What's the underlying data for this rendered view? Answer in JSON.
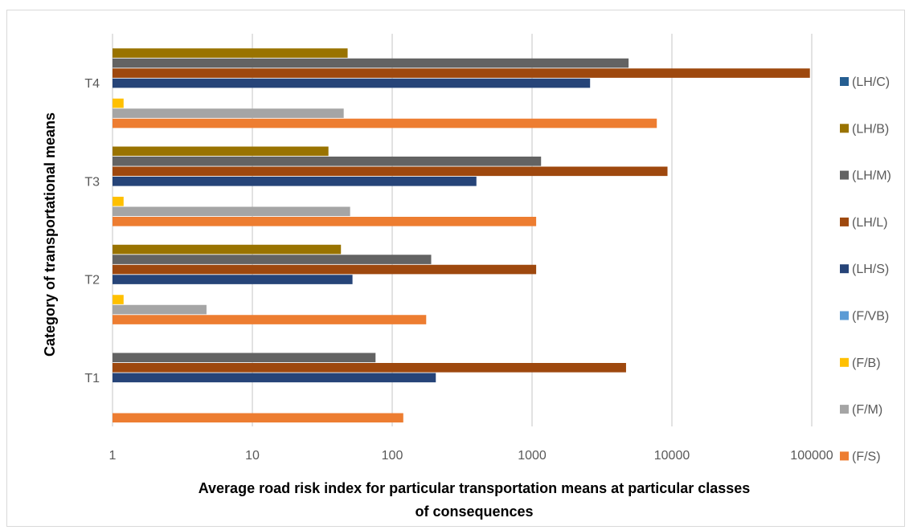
{
  "chart_data": {
    "type": "bar",
    "orientation": "horizontal",
    "x_scale": "log",
    "xlim": [
      1,
      100000
    ],
    "x_ticks": [
      "1",
      "10",
      "100",
      "1000",
      "10000",
      "100000"
    ],
    "categories": [
      "T1",
      "T2",
      "T3",
      "T4"
    ],
    "xlabel_line1": "Average road risk index for particular transportation means at particular classes",
    "xlabel_line2": "of consequences",
    "ylabel": "Category of transportational means",
    "grid": "vertical",
    "legend_position": "right",
    "series": [
      {
        "name": "(F/S)",
        "color": "#ED7D31",
        "values": [
          120,
          175,
          1070,
          7800
        ]
      },
      {
        "name": "(F/M)",
        "color": "#A5A5A5",
        "values": [
          null,
          4.7,
          50,
          45
        ]
      },
      {
        "name": "(F/B)",
        "color": "#FFC000",
        "values": [
          null,
          1.2,
          1.2,
          1.2
        ]
      },
      {
        "name": "(F/VB)",
        "color": "#5B9BD5",
        "values": [
          null,
          null,
          null,
          null
        ]
      },
      {
        "name": "(LH/S)",
        "color": "#264478",
        "values": [
          205,
          52,
          400,
          2600
        ]
      },
      {
        "name": "(LH/L)",
        "color": "#9E480E",
        "values": [
          4700,
          1070,
          9300,
          97000
        ]
      },
      {
        "name": "(LH/M)",
        "color": "#636363",
        "values": [
          76,
          190,
          1160,
          4900
        ]
      },
      {
        "name": "(LH/B)",
        "color": "#997300",
        "values": [
          null,
          43,
          35,
          48
        ]
      },
      {
        "name": "(LH/C)",
        "color": "#255E91",
        "values": [
          null,
          null,
          null,
          null
        ]
      }
    ],
    "legend_order": [
      "(LH/C)",
      "(LH/B)",
      "(LH/M)",
      "(LH/L)",
      "(LH/S)",
      "(F/VB)",
      "(F/B)",
      "(F/M)",
      "(F/S)"
    ]
  }
}
